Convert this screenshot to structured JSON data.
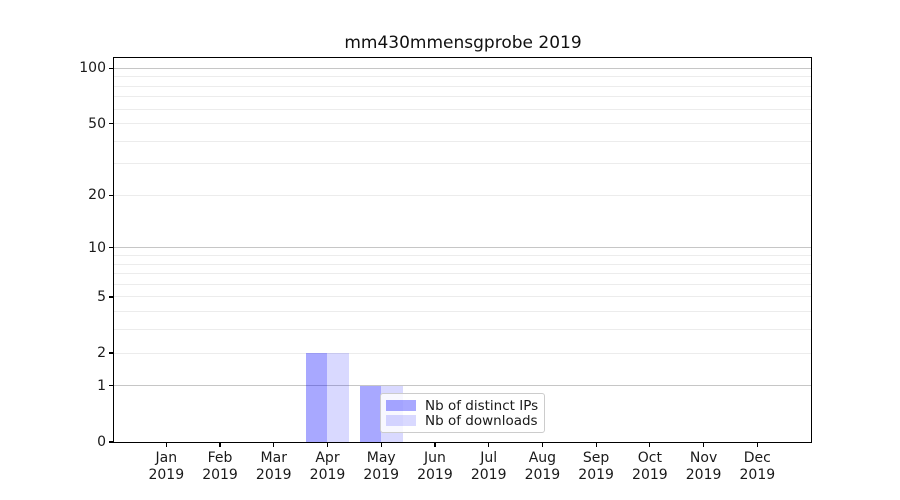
{
  "chart_data": {
    "type": "bar",
    "title": "mm430mmensgprobe 2019",
    "categories": [
      "Jan",
      "Feb",
      "Mar",
      "Apr",
      "May",
      "Jun",
      "Jul",
      "Aug",
      "Sep",
      "Oct",
      "Nov",
      "Dec"
    ],
    "category_year": "2019",
    "series": [
      {
        "name": "Nb of distinct IPs",
        "color": "rgba(0,0,255,0.34)",
        "values": [
          0,
          0,
          0,
          2,
          1,
          0,
          0,
          0,
          0,
          0,
          0,
          0
        ]
      },
      {
        "name": "Nb of downloads",
        "color": "rgba(0,0,255,0.15)",
        "values": [
          0,
          0,
          0,
          2,
          1,
          0,
          0,
          0,
          0,
          0,
          0,
          0
        ]
      }
    ],
    "xlabel": "",
    "ylabel": "",
    "yscale": "log1p",
    "ylim": [
      0,
      113
    ],
    "y_tick_labels": [
      0,
      1,
      2,
      5,
      10,
      20,
      50,
      100
    ],
    "y_major_grid": [
      1,
      10,
      100
    ],
    "y_minor_grid": [
      2,
      3,
      4,
      5,
      6,
      7,
      8,
      9,
      20,
      30,
      40,
      50,
      60,
      70,
      80,
      90
    ],
    "grid": true,
    "legend_position": "lower center"
  },
  "style": {
    "axis_color": "#000000",
    "major_grid_color": "#c6c6c6",
    "minor_grid_color": "#ececec",
    "legend_border_color": "#cccccc"
  }
}
